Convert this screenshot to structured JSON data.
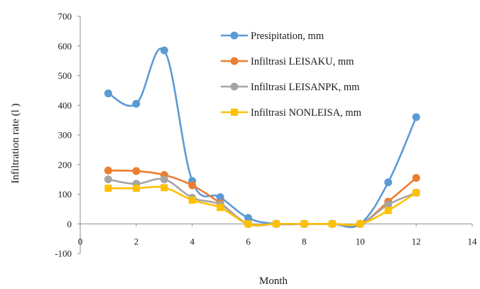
{
  "chart_data": {
    "type": "line",
    "title": "",
    "xlabel": "Month",
    "ylabel": "Infiltration rate (l )",
    "xlim": [
      0,
      14
    ],
    "ylim": [
      -100,
      700
    ],
    "x_ticks": [
      "0",
      "2",
      "4",
      "6",
      "8",
      "10",
      "12",
      "14"
    ],
    "y_ticks": [
      "-100",
      "0",
      "100",
      "200",
      "300",
      "400",
      "500",
      "600",
      "700"
    ],
    "grid": false,
    "legend_position": "top-right",
    "x": [
      1,
      2,
      3,
      4,
      5,
      6,
      7,
      8,
      9,
      10,
      11,
      12
    ],
    "series": [
      {
        "name": "Presipitation, mm",
        "color": "#5B9BD5",
        "marker": "circle",
        "values": [
          440,
          405,
          585,
          145,
          90,
          20,
          0,
          0,
          0,
          0,
          140,
          360
        ]
      },
      {
        "name": "Infiltrasi LEISAKU, mm",
        "color": "#ED7D31",
        "marker": "circle",
        "values": [
          180,
          178,
          165,
          130,
          70,
          0,
          0,
          0,
          0,
          0,
          75,
          155
        ]
      },
      {
        "name": "Infiltrasi LEISANPK, mm",
        "color": "#A5A5A5",
        "marker": "circle",
        "values": [
          150,
          135,
          150,
          88,
          65,
          0,
          0,
          0,
          0,
          0,
          65,
          105
        ]
      },
      {
        "name": "Infiltrasi NONLEISA, mm",
        "color": "#FFC000",
        "marker": "square",
        "values": [
          120,
          120,
          122,
          80,
          55,
          0,
          0,
          0,
          0,
          0,
          45,
          105
        ]
      }
    ]
  }
}
